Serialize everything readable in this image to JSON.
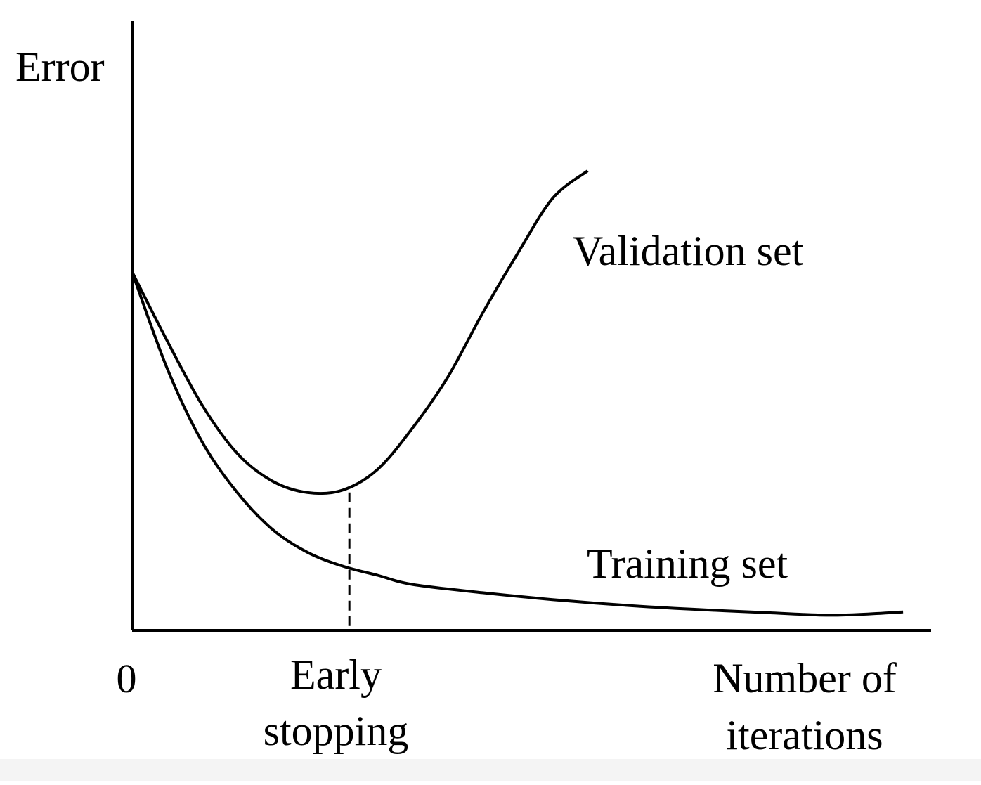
{
  "chart_data": {
    "type": "line",
    "title": "",
    "ylabel": "Error",
    "xlabel": [
      "Number of",
      "iterations"
    ],
    "x_origin_label": "0",
    "annotation": {
      "label": [
        "Early",
        "stopping"
      ],
      "x": 3.1
    },
    "xlim": [
      0,
      11.4
    ],
    "ylim": [
      0,
      10
    ],
    "grid": false,
    "legend": "none",
    "series": [
      {
        "name": "Validation set",
        "x": [
          0,
          0.5,
          1.0,
          1.5,
          2.0,
          2.5,
          3.0,
          3.5,
          4.0,
          4.5,
          5.0,
          5.5,
          6.0,
          6.5
        ],
        "y": [
          7.8,
          6.3,
          4.9,
          3.85,
          3.25,
          3.0,
          3.05,
          3.5,
          4.4,
          5.5,
          6.9,
          8.2,
          9.4,
          10.0
        ]
      },
      {
        "name": "Training set",
        "x": [
          0,
          0.5,
          1.0,
          1.5,
          2.0,
          2.5,
          3.0,
          3.5,
          4.0,
          5.0,
          6.0,
          7.0,
          8.0,
          9.0,
          10.0,
          11.0
        ],
        "y": [
          7.8,
          5.7,
          4.1,
          3.0,
          2.2,
          1.7,
          1.4,
          1.2,
          1.0,
          0.82,
          0.67,
          0.55,
          0.46,
          0.39,
          0.33,
          0.4
        ]
      }
    ],
    "colors": {
      "ink": "#000000",
      "background": "#ffffff"
    }
  }
}
